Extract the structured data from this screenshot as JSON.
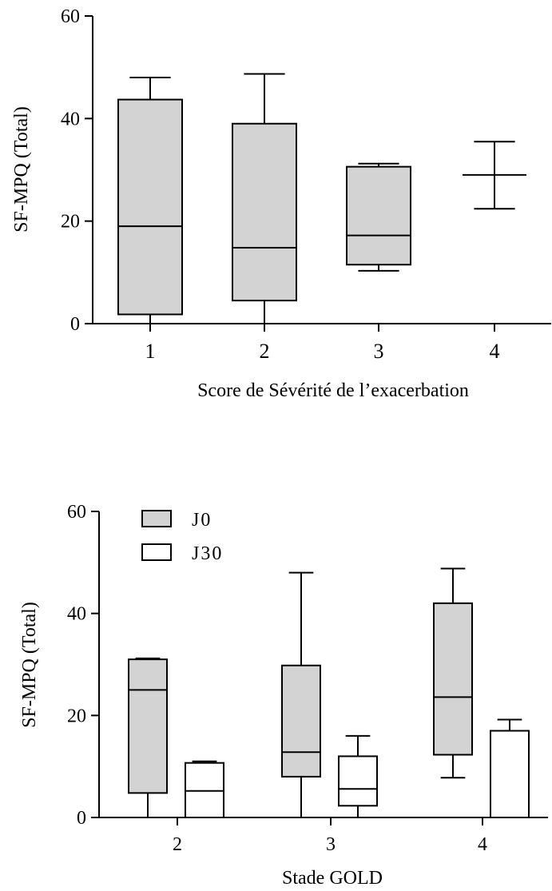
{
  "chart_data": [
    {
      "type": "box",
      "ylabel": "SF-MPQ (Total)",
      "xlabel": "Score de Sévérité de l’exacerbation",
      "ylim": [
        0,
        60
      ],
      "yticks": [
        "0",
        "20",
        "40",
        "60"
      ],
      "yticks_values": [
        0,
        20,
        40,
        60
      ],
      "categories": [
        "1",
        "2",
        "3",
        "4"
      ],
      "fill": "#d3d3d3",
      "boxes": [
        {
          "category": "1",
          "min": 0,
          "q1": 1.8,
          "median": 19,
          "q3": 43.7,
          "max": 48
        },
        {
          "category": "2",
          "min": 0,
          "q1": 4.5,
          "median": 14.8,
          "q3": 39,
          "max": 48.7
        },
        {
          "category": "3",
          "min": 10.3,
          "q1": 11.5,
          "median": 17.2,
          "q3": 30.6,
          "max": 31.2
        },
        {
          "category": "4",
          "min": 22.4,
          "q1": 29,
          "median": 29,
          "q3": 29,
          "max": 35.5
        }
      ]
    },
    {
      "type": "box",
      "ylabel": "SF-MPQ (Total)",
      "xlabel": "Stade GOLD",
      "ylim": [
        0,
        60
      ],
      "yticks": [
        "0",
        "20",
        "40",
        "60"
      ],
      "yticks_values": [
        0,
        20,
        40,
        60
      ],
      "categories": [
        "2",
        "3",
        "4"
      ],
      "legend": [
        {
          "label": "J0",
          "color": "#d3d3d3"
        },
        {
          "label": "J30",
          "color": "#ffffff"
        }
      ],
      "series": [
        {
          "name": "J0",
          "color": "#d3d3d3",
          "boxes": [
            {
              "category": "2",
              "min": 0,
              "q1": 4.8,
              "median": 25,
              "q3": 31,
              "max": 31.2
            },
            {
              "category": "3",
              "min": 0,
              "q1": 8,
              "median": 12.8,
              "q3": 29.8,
              "max": 48
            },
            {
              "category": "4",
              "min": 7.8,
              "q1": 12.3,
              "median": 23.6,
              "q3": 42,
              "max": 48.8
            }
          ]
        },
        {
          "name": "J30",
          "color": "#ffffff",
          "boxes": [
            {
              "category": "2",
              "min": 0,
              "q1": 0,
              "median": 5.2,
              "q3": 10.7,
              "max": 11
            },
            {
              "category": "3",
              "min": 0,
              "q1": 2.3,
              "median": 5.6,
              "q3": 12,
              "max": 16
            },
            {
              "category": "4",
              "min": 0,
              "q1": 0,
              "median": 17,
              "q3": 17,
              "max": 19.2
            }
          ]
        }
      ]
    }
  ]
}
